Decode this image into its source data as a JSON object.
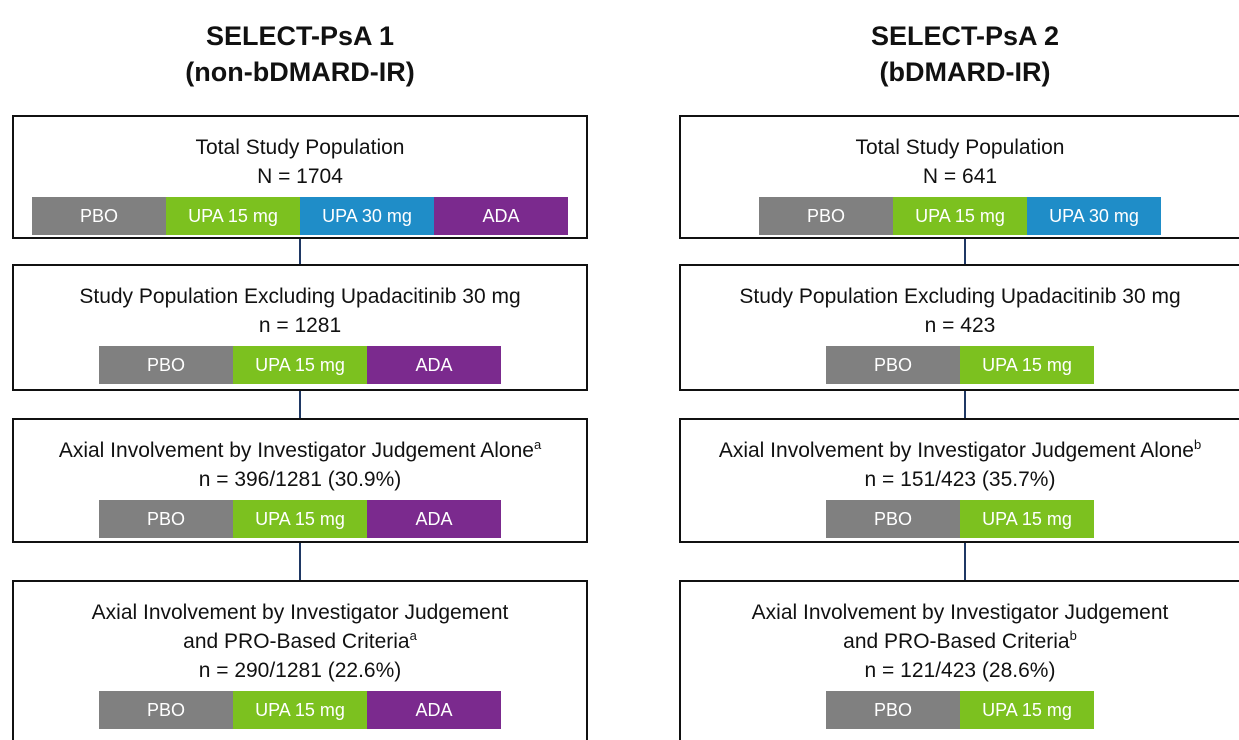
{
  "columns": [
    {
      "title": [
        "SELECT-PsA 1",
        "(non-bDMARD-IR)"
      ],
      "boxes": [
        {
          "label": [
            "Total Study Population"
          ],
          "count": "N = 1704",
          "arms": [
            {
              "name": "PBO",
              "color": "#808080"
            },
            {
              "name": "UPA 15 mg",
              "color": "#7cc11f"
            },
            {
              "name": "UPA 30 mg",
              "color": "#1f8dc8"
            },
            {
              "name": "ADA",
              "color": "#7b2a8e"
            }
          ]
        },
        {
          "label": [
            "Study Population Excluding Upadacitinib 30 mg"
          ],
          "count": "n = 1281",
          "arms": [
            {
              "name": "PBO",
              "color": "#808080"
            },
            {
              "name": "UPA 15 mg",
              "color": "#7cc11f"
            },
            {
              "name": "ADA",
              "color": "#7b2a8e"
            }
          ]
        },
        {
          "label": [
            "Axial Involvement by Investigator Judgement Alone"
          ],
          "footnote": "a",
          "count": "n = 396/1281 (30.9%)",
          "arms": [
            {
              "name": "PBO",
              "color": "#808080"
            },
            {
              "name": "UPA 15 mg",
              "color": "#7cc11f"
            },
            {
              "name": "ADA",
              "color": "#7b2a8e"
            }
          ]
        },
        {
          "label": [
            "Axial Involvement by Investigator Judgement",
            "and PRO-Based Criteria"
          ],
          "footnote": "a",
          "count": "n = 290/1281 (22.6%)",
          "arms": [
            {
              "name": "PBO",
              "color": "#808080"
            },
            {
              "name": "UPA 15 mg",
              "color": "#7cc11f"
            },
            {
              "name": "ADA",
              "color": "#7b2a8e"
            }
          ]
        }
      ]
    },
    {
      "title": [
        "SELECT-PsA 2",
        "(bDMARD-IR)"
      ],
      "boxes": [
        {
          "label": [
            "Total Study Population"
          ],
          "count": "N = 641",
          "arms": [
            {
              "name": "PBO",
              "color": "#808080"
            },
            {
              "name": "UPA 15 mg",
              "color": "#7cc11f"
            },
            {
              "name": "UPA 30 mg",
              "color": "#1f8dc8"
            }
          ]
        },
        {
          "label": [
            "Study Population Excluding Upadacitinib 30 mg"
          ],
          "count": "n = 423",
          "arms": [
            {
              "name": "PBO",
              "color": "#808080"
            },
            {
              "name": "UPA 15 mg",
              "color": "#7cc11f"
            }
          ]
        },
        {
          "label": [
            "Axial Involvement by Investigator Judgement Alone"
          ],
          "footnote": "b",
          "count": "n = 151/423 (35.7%)",
          "arms": [
            {
              "name": "PBO",
              "color": "#808080"
            },
            {
              "name": "UPA 15 mg",
              "color": "#7cc11f"
            }
          ]
        },
        {
          "label": [
            "Axial Involvement by Investigator Judgement",
            "and PRO-Based Criteria"
          ],
          "footnote": "b",
          "count": "n = 121/423 (28.6%)",
          "arms": [
            {
              "name": "PBO",
              "color": "#808080"
            },
            {
              "name": "UPA 15 mg",
              "color": "#7cc11f"
            }
          ]
        }
      ]
    }
  ]
}
